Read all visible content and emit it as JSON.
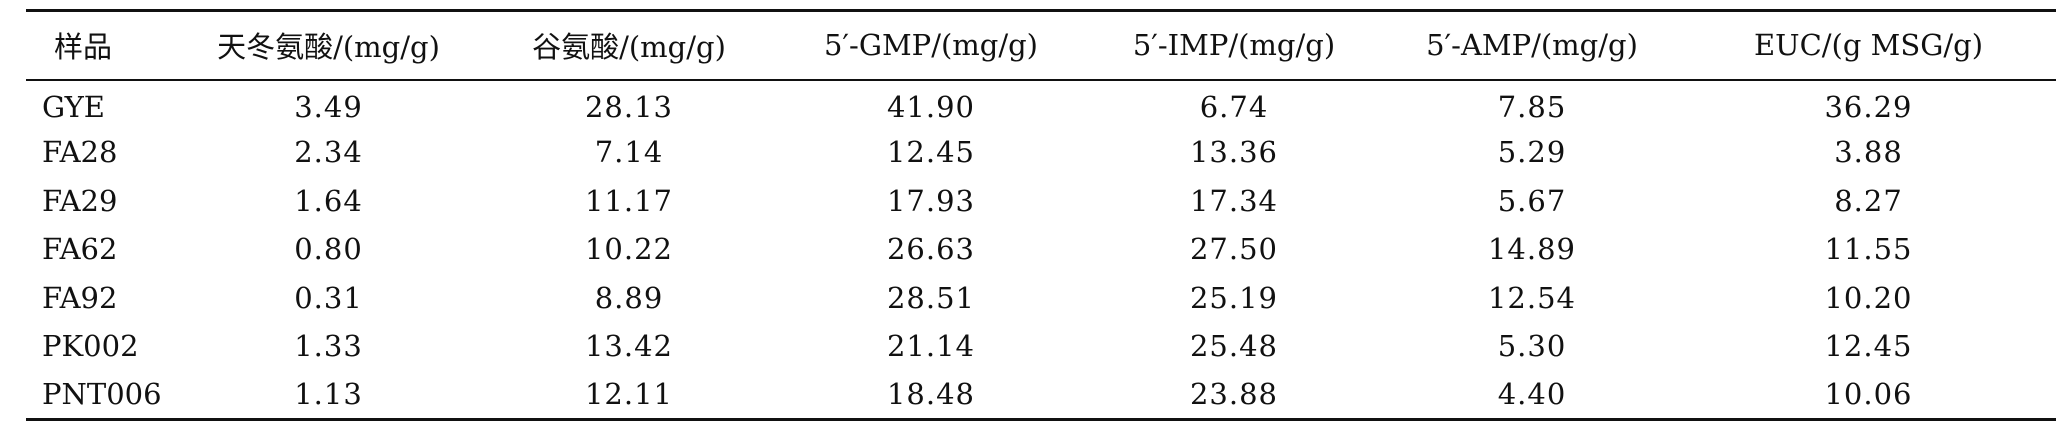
{
  "table": {
    "headers": [
      "样品",
      "天冬氨酸/(mg/g)",
      "谷氨酸/(mg/g)",
      "5′-GMP/(mg/g)",
      "5′-IMP/(mg/g)",
      "5′-AMP/(mg/g)",
      "EUC/(g MSG/g)"
    ],
    "rows": [
      [
        "GYE",
        "3.49",
        "28.13",
        "41.90",
        "6.74",
        "7.85",
        "36.29"
      ],
      [
        "FA28",
        "2.34",
        "7.14",
        "12.45",
        "13.36",
        "5.29",
        "3.88"
      ],
      [
        "FA29",
        "1.64",
        "11.17",
        "17.93",
        "17.34",
        "5.67",
        "8.27"
      ],
      [
        "FA62",
        "0.80",
        "10.22",
        "26.63",
        "27.50",
        "14.89",
        "11.55"
      ],
      [
        "FA92",
        "0.31",
        "8.89",
        "28.51",
        "25.19",
        "12.54",
        "10.20"
      ],
      [
        "PK002",
        "1.33",
        "13.42",
        "21.14",
        "25.48",
        "5.30",
        "12.45"
      ],
      [
        "PNT006",
        "1.13",
        "12.11",
        "18.48",
        "23.88",
        "4.40",
        "10.06"
      ]
    ]
  }
}
